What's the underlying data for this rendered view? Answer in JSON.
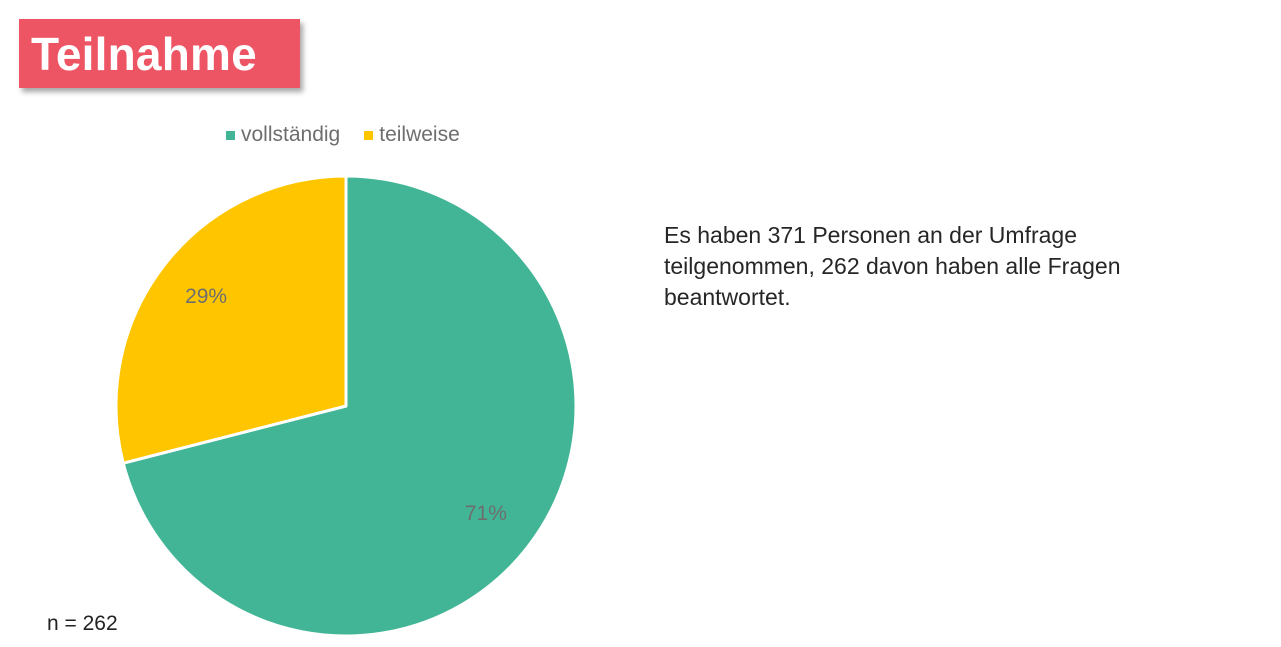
{
  "title": "Teilnahme",
  "description": "Es haben 371 Personen an der Umfrage teilgenommen, 262 davon haben alle Fragen beantwortet.",
  "n_label": "n = 262",
  "chart_data": {
    "type": "pie",
    "title": "",
    "legend_position": "top",
    "slices": [
      {
        "name": "vollständig",
        "value": 71,
        "label": "71%",
        "color": "#41b595"
      },
      {
        "name": "teilweise",
        "value": 29,
        "label": "29%",
        "color": "#ffc600"
      }
    ]
  }
}
